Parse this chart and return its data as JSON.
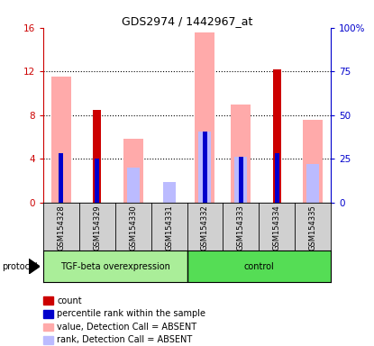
{
  "title": "GDS2974 / 1442967_at",
  "samples": [
    "GSM154328",
    "GSM154329",
    "GSM154330",
    "GSM154331",
    "GSM154332",
    "GSM154333",
    "GSM154334",
    "GSM154335"
  ],
  "group_label_0": "TGF-beta overexpression",
  "group_label_1": "control",
  "group_boundary": 3.5,
  "value_absent": [
    11.5,
    null,
    5.8,
    null,
    15.6,
    9.0,
    null,
    7.6
  ],
  "rank_absent_pct": [
    null,
    null,
    20.0,
    11.5,
    40.6,
    26.3,
    null,
    21.9
  ],
  "count_red": [
    null,
    8.5,
    null,
    null,
    null,
    null,
    12.2,
    null
  ],
  "percentile_blue_pct": [
    28.1,
    25.0,
    null,
    null,
    40.6,
    26.3,
    28.1,
    null
  ],
  "ylim_left": [
    0,
    16
  ],
  "ylim_right": [
    0,
    100
  ],
  "yticks_left": [
    0,
    4,
    8,
    12,
    16
  ],
  "yticks_right": [
    0,
    25,
    50,
    75,
    100
  ],
  "ytick_labels_right": [
    "0",
    "25",
    "50",
    "75",
    "100%"
  ],
  "ytick_labels_left": [
    "0",
    "4",
    "8",
    "12",
    "16"
  ],
  "color_count": "#cc0000",
  "color_percentile": "#0000cc",
  "color_value_absent": "#ffaaaa",
  "color_rank_absent": "#bbbbff",
  "group1_color": "#aaee99",
  "group2_color": "#55dd55",
  "left_axis_color": "#cc0000",
  "right_axis_color": "#0000cc",
  "legend_items": [
    {
      "color": "#cc0000",
      "label": "count"
    },
    {
      "color": "#0000cc",
      "label": "percentile rank within the sample"
    },
    {
      "color": "#ffaaaa",
      "label": "value, Detection Call = ABSENT"
    },
    {
      "color": "#bbbbff",
      "label": "rank, Detection Call = ABSENT"
    }
  ]
}
